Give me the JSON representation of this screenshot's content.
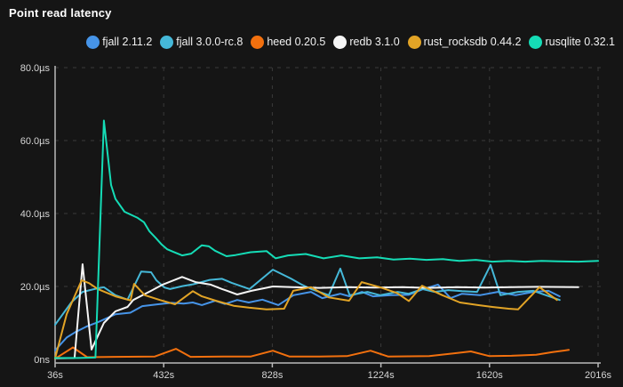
{
  "title": "Point read latency",
  "colors": {
    "background": "#151515",
    "axis": "#b9b9b9",
    "grid": "#3a3a3a",
    "tick_text": "#d6d6d6",
    "title_text": "#ffffff",
    "legend_text": "#f2f2f2"
  },
  "chart_data": {
    "type": "line",
    "title": "Point read latency",
    "legend_position": "top",
    "grid": "dashed",
    "xlim": [
      36,
      2016
    ],
    "ylim_us": [
      0,
      80
    ],
    "x_ticks": [
      {
        "value": 36,
        "label": "36s"
      },
      {
        "value": 432,
        "label": "432s"
      },
      {
        "value": 828,
        "label": "828s"
      },
      {
        "value": 1224,
        "label": "1224s"
      },
      {
        "value": 1620,
        "label": "1620s"
      },
      {
        "value": 2016,
        "label": "2016s"
      }
    ],
    "y_ticks": [
      {
        "value": 0,
        "label": "0ns"
      },
      {
        "value": 20,
        "label": "20.0µs"
      },
      {
        "value": 40,
        "label": "40.0µs"
      },
      {
        "value": 60,
        "label": "60.0µs"
      },
      {
        "value": 80,
        "label": "80.0µs"
      }
    ],
    "series": [
      {
        "name": "fjall 2.11.2",
        "color": "#4694e8",
        "points": [
          [
            36,
            2.5
          ],
          [
            78,
            6.0
          ],
          [
            110,
            7.5
          ],
          [
            150,
            9.0
          ],
          [
            192,
            10.2
          ],
          [
            256,
            12.4
          ],
          [
            310,
            12.8
          ],
          [
            354,
            14.6
          ],
          [
            408,
            15.1
          ],
          [
            460,
            15.5
          ],
          [
            505,
            15.3
          ],
          [
            538,
            15.6
          ],
          [
            571,
            14.9
          ],
          [
            620,
            16.1
          ],
          [
            655,
            15.2
          ],
          [
            700,
            16.3
          ],
          [
            742,
            15.6
          ],
          [
            792,
            16.4
          ],
          [
            850,
            14.9
          ],
          [
            905,
            17.6
          ],
          [
            969,
            18.5
          ],
          [
            1010,
            16.8
          ],
          [
            1076,
            18.0
          ],
          [
            1110,
            17.3
          ],
          [
            1155,
            18.5
          ],
          [
            1195,
            17.3
          ],
          [
            1260,
            17.6
          ],
          [
            1325,
            17.7
          ],
          [
            1375,
            19.2
          ],
          [
            1432,
            20.5
          ],
          [
            1478,
            16.8
          ],
          [
            1520,
            18.0
          ],
          [
            1585,
            17.6
          ],
          [
            1650,
            18.5
          ],
          [
            1715,
            17.6
          ],
          [
            1780,
            18.5
          ],
          [
            1835,
            18.8
          ],
          [
            1876,
            17.3
          ]
        ]
      },
      {
        "name": "fjall 3.0.0-rc.8",
        "color": "#45b8d8",
        "points": [
          [
            36,
            9.5
          ],
          [
            95,
            15.6
          ],
          [
            136,
            18.5
          ],
          [
            180,
            19.3
          ],
          [
            214,
            19.8
          ],
          [
            256,
            17.6
          ],
          [
            300,
            16.4
          ],
          [
            350,
            24.1
          ],
          [
            386,
            23.9
          ],
          [
            405,
            21.7
          ],
          [
            435,
            19.7
          ],
          [
            455,
            19.3
          ],
          [
            500,
            20.1
          ],
          [
            540,
            20.6
          ],
          [
            600,
            21.8
          ],
          [
            645,
            22.1
          ],
          [
            680,
            21.0
          ],
          [
            745,
            19.3
          ],
          [
            830,
            24.6
          ],
          [
            895,
            22.2
          ],
          [
            935,
            20.5
          ],
          [
            970,
            19.3
          ],
          [
            1034,
            17.6
          ],
          [
            1076,
            24.9
          ],
          [
            1110,
            17.6
          ],
          [
            1175,
            18.5
          ],
          [
            1220,
            17.6
          ],
          [
            1285,
            18.5
          ],
          [
            1325,
            18.0
          ],
          [
            1375,
            19.3
          ],
          [
            1420,
            18.5
          ],
          [
            1470,
            19.0
          ],
          [
            1520,
            18.7
          ],
          [
            1575,
            18.5
          ],
          [
            1624,
            25.9
          ],
          [
            1660,
            17.6
          ],
          [
            1724,
            18.5
          ],
          [
            1780,
            18.8
          ],
          [
            1830,
            17.5
          ],
          [
            1876,
            16.3
          ]
        ]
      },
      {
        "name": "heed 0.20.5",
        "color": "#f2700e",
        "points": [
          [
            36,
            0.2
          ],
          [
            101,
            3.3
          ],
          [
            153,
            0.6
          ],
          [
            250,
            0.7
          ],
          [
            400,
            0.8
          ],
          [
            477,
            2.9
          ],
          [
            530,
            0.7
          ],
          [
            650,
            0.8
          ],
          [
            750,
            0.8
          ],
          [
            830,
            2.4
          ],
          [
            890,
            0.8
          ],
          [
            1000,
            0.8
          ],
          [
            1100,
            0.9
          ],
          [
            1186,
            2.4
          ],
          [
            1250,
            0.8
          ],
          [
            1400,
            0.9
          ],
          [
            1552,
            2.2
          ],
          [
            1620,
            0.9
          ],
          [
            1700,
            1.0
          ],
          [
            1790,
            1.3
          ],
          [
            1850,
            2.0
          ],
          [
            1909,
            2.6
          ]
        ]
      },
      {
        "name": "redb 3.1.0",
        "color": "#f5f5f5",
        "points": [
          [
            36,
            0.3
          ],
          [
            107,
            0.4
          ],
          [
            136,
            26.1
          ],
          [
            169,
            2.7
          ],
          [
            214,
            10.0
          ],
          [
            256,
            13.2
          ],
          [
            300,
            14.4
          ],
          [
            321,
            16.3
          ],
          [
            386,
            18.8
          ],
          [
            428,
            20.5
          ],
          [
            499,
            22.6
          ],
          [
            548,
            21.2
          ],
          [
            603,
            20.5
          ],
          [
            645,
            19.3
          ],
          [
            700,
            17.8
          ],
          [
            752,
            18.8
          ],
          [
            830,
            20.0
          ],
          [
            900,
            19.8
          ],
          [
            1000,
            19.6
          ],
          [
            1100,
            19.8
          ],
          [
            1200,
            19.7
          ],
          [
            1300,
            19.8
          ],
          [
            1400,
            19.6
          ],
          [
            1500,
            19.8
          ],
          [
            1600,
            19.7
          ],
          [
            1700,
            19.8
          ],
          [
            1800,
            19.9
          ],
          [
            1944,
            19.8
          ]
        ]
      },
      {
        "name": "rust_rocksdb 0.44.2",
        "color": "#e2a426",
        "points": [
          [
            36,
            0.3
          ],
          [
            78,
            12.4
          ],
          [
            133,
            21.7
          ],
          [
            160,
            20.9
          ],
          [
            192,
            19.3
          ],
          [
            256,
            17.3
          ],
          [
            311,
            16.2
          ],
          [
            324,
            20.7
          ],
          [
            363,
            17.6
          ],
          [
            418,
            16.3
          ],
          [
            473,
            15.1
          ],
          [
            538,
            18.7
          ],
          [
            571,
            17.3
          ],
          [
            622,
            16.1
          ],
          [
            687,
            14.7
          ],
          [
            742,
            14.2
          ],
          [
            807,
            13.7
          ],
          [
            871,
            13.9
          ],
          [
            904,
            18.8
          ],
          [
            969,
            19.8
          ],
          [
            1034,
            17.0
          ],
          [
            1108,
            16.1
          ],
          [
            1154,
            21.2
          ],
          [
            1220,
            19.8
          ],
          [
            1283,
            18.2
          ],
          [
            1326,
            16.0
          ],
          [
            1374,
            20.2
          ],
          [
            1448,
            17.6
          ],
          [
            1512,
            15.6
          ],
          [
            1577,
            14.9
          ],
          [
            1630,
            14.4
          ],
          [
            1690,
            13.9
          ],
          [
            1724,
            13.7
          ],
          [
            1802,
            19.8
          ],
          [
            1866,
            16.3
          ]
        ]
      },
      {
        "name": "rusqlite 0.32.1",
        "color": "#15dcb6",
        "points": [
          [
            36,
            0.4
          ],
          [
            120,
            0.4
          ],
          [
            183,
            0.5
          ],
          [
            214,
            65.5
          ],
          [
            240,
            47.8
          ],
          [
            256,
            44.0
          ],
          [
            289,
            40.5
          ],
          [
            337,
            38.8
          ],
          [
            360,
            37.6
          ],
          [
            380,
            35.1
          ],
          [
            402,
            33.4
          ],
          [
            425,
            31.5
          ],
          [
            445,
            30.2
          ],
          [
            467,
            29.5
          ],
          [
            499,
            28.5
          ],
          [
            532,
            29.0
          ],
          [
            571,
            31.3
          ],
          [
            597,
            31.0
          ],
          [
            619,
            29.8
          ],
          [
            661,
            28.3
          ],
          [
            694,
            28.6
          ],
          [
            749,
            29.4
          ],
          [
            807,
            29.7
          ],
          [
            840,
            27.7
          ],
          [
            885,
            28.5
          ],
          [
            950,
            28.9
          ],
          [
            1015,
            27.7
          ],
          [
            1080,
            28.5
          ],
          [
            1145,
            27.7
          ],
          [
            1210,
            28.0
          ],
          [
            1270,
            27.4
          ],
          [
            1330,
            27.6
          ],
          [
            1390,
            27.3
          ],
          [
            1450,
            27.5
          ],
          [
            1510,
            27.0
          ],
          [
            1570,
            27.3
          ],
          [
            1630,
            26.8
          ],
          [
            1690,
            27.0
          ],
          [
            1750,
            26.8
          ],
          [
            1810,
            27.0
          ],
          [
            1870,
            26.9
          ],
          [
            1944,
            26.8
          ],
          [
            2016,
            27.0
          ]
        ]
      }
    ]
  }
}
